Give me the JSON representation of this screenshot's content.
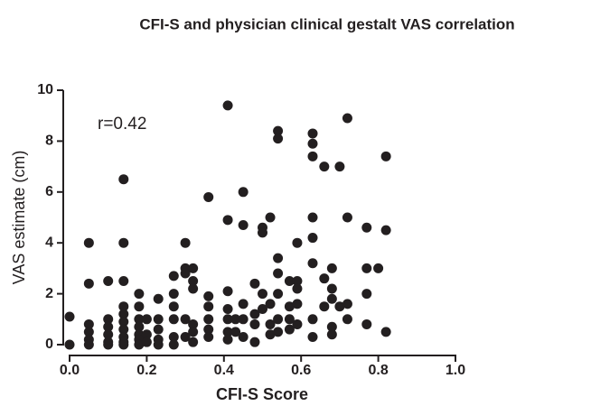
{
  "chart_data": {
    "type": "scatter",
    "title": "CFI-S and physician clinical gestalt VAS correlation",
    "x_label": "CFI-S Score",
    "y_label": "VAS estimate (cm)",
    "annotation": "r=0.42",
    "color": "#231f20",
    "xlim": [
      0,
      1
    ],
    "ylim": [
      0,
      10
    ],
    "xticks": [
      {
        "value": 0,
        "label": "0.0"
      },
      0.2,
      0.4,
      0.6,
      0.8,
      {
        "value": 1,
        "label": "1.0"
      }
    ],
    "yticks": [
      0,
      2,
      4,
      6,
      8,
      10
    ],
    "x": [
      0,
      0,
      0.05,
      0.05,
      0.05,
      0.05,
      0.05,
      0.05,
      0.1,
      0.1,
      0.1,
      0.1,
      0.1,
      0.1,
      0.14,
      0.14,
      0.14,
      0.14,
      0.14,
      0.14,
      0.14,
      0.14,
      0.14,
      0.14,
      0.18,
      0.18,
      0.18,
      0.18,
      0.18,
      0.18,
      0.18,
      0.2,
      0.2,
      0.2,
      0.23,
      0.23,
      0.23,
      0.23,
      0.23,
      0.27,
      0.27,
      0.27,
      0.27,
      0.27,
      0.27,
      0.3,
      0.3,
      0.3,
      0.3,
      0.3,
      0.32,
      0.32,
      0.32,
      0.32,
      0.32,
      0.32,
      0.36,
      0.36,
      0.36,
      0.36,
      0.36,
      0.36,
      0.41,
      0.41,
      0.41,
      0.41,
      0.41,
      0.41,
      0.41,
      0.43,
      0.43,
      0.45,
      0.45,
      0.45,
      0.45,
      0.45,
      0.48,
      0.48,
      0.48,
      0.48,
      0.5,
      0.5,
      0.5,
      0.5,
      0.52,
      0.52,
      0.52,
      0.52,
      0.54,
      0.54,
      0.54,
      0.54,
      0.54,
      0.54,
      0.54,
      0.57,
      0.57,
      0.57,
      0.57,
      0.59,
      0.59,
      0.59,
      0.59,
      0.59,
      0.63,
      0.63,
      0.63,
      0.63,
      0.63,
      0.63,
      0.63,
      0.63,
      0.66,
      0.66,
      0.66,
      0.68,
      0.68,
      0.68,
      0.68,
      0.68,
      0.7,
      0.7,
      0.72,
      0.72,
      0.72,
      0.72,
      0.77,
      0.77,
      0.77,
      0.77,
      0.8,
      0.82,
      0.82,
      0.82
    ],
    "values": [
      1.1,
      0,
      4.0,
      2.4,
      0.8,
      0.5,
      0.2,
      0,
      2.5,
      1.0,
      0.7,
      0.4,
      0.1,
      0,
      6.5,
      4.0,
      2.5,
      1.5,
      1.2,
      0.9,
      0.6,
      0.3,
      0.1,
      0,
      2.0,
      1.5,
      1.0,
      0.7,
      0.4,
      0.2,
      0,
      1.0,
      0.4,
      0.1,
      1.8,
      1.0,
      0.6,
      0.2,
      0,
      2.7,
      2.0,
      1.5,
      1.0,
      0.3,
      0,
      4.0,
      3.0,
      2.8,
      1.0,
      0.3,
      3.0,
      2.5,
      2.2,
      0.8,
      0.5,
      0.1,
      5.8,
      1.9,
      1.5,
      1.0,
      0.6,
      0.3,
      9.4,
      4.9,
      2.1,
      1.4,
      1.0,
      0.5,
      0.2,
      1.0,
      0.5,
      6.0,
      4.7,
      1.6,
      1.0,
      0.3,
      2.4,
      1.2,
      0.8,
      0.1,
      4.6,
      4.4,
      2.0,
      1.4,
      5.0,
      1.6,
      0.8,
      0.4,
      8.4,
      8.1,
      3.4,
      2.8,
      2.0,
      1.0,
      0.5,
      2.5,
      1.5,
      1.0,
      0.6,
      4.0,
      2.5,
      2.2,
      1.6,
      0.8,
      8.3,
      7.9,
      7.4,
      5.0,
      4.2,
      3.2,
      1.0,
      0.3,
      7.0,
      2.6,
      1.5,
      3.0,
      2.2,
      1.8,
      0.7,
      0.4,
      7.0,
      1.5,
      8.9,
      5.0,
      1.6,
      1.0,
      4.6,
      3.0,
      2.0,
      0.8,
      3.0,
      7.4,
      4.5,
      0.5
    ]
  }
}
